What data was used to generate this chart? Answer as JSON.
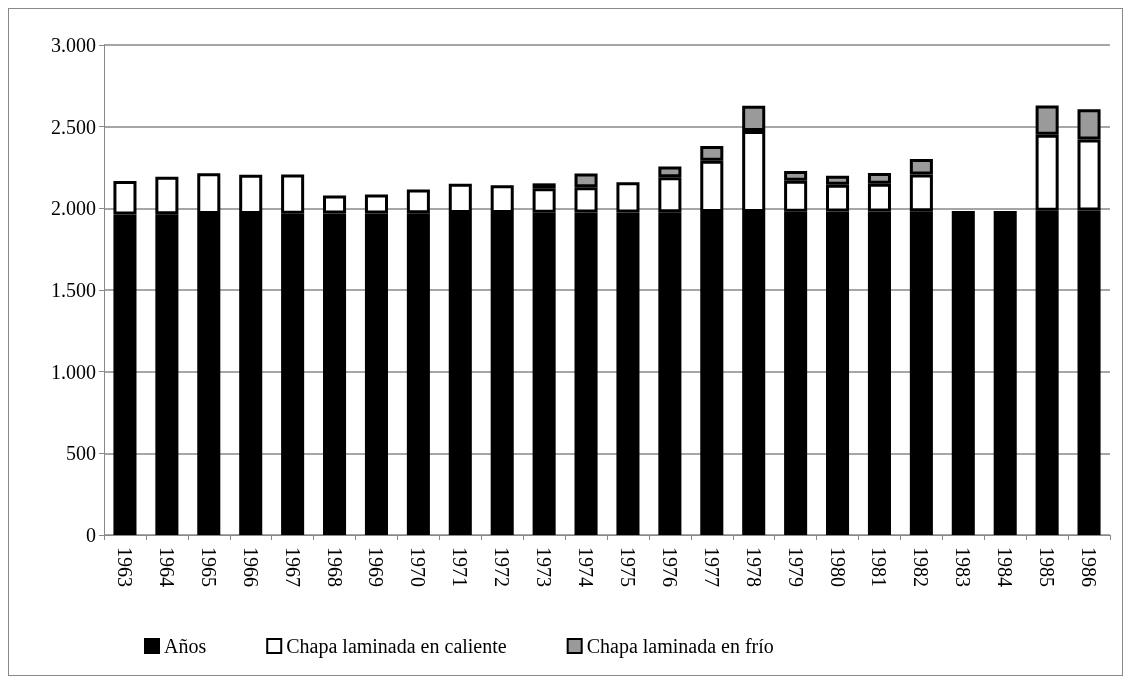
{
  "chart_data": {
    "type": "bar",
    "stacked": true,
    "categories": [
      "1963",
      "1964",
      "1965",
      "1966",
      "1967",
      "1968",
      "1969",
      "1970",
      "1971",
      "1972",
      "1973",
      "1974",
      "1975",
      "1976",
      "1977",
      "1978",
      "1979",
      "1980",
      "1981",
      "1982",
      "1983",
      "1984",
      "1985",
      "1986"
    ],
    "series": [
      {
        "name": "Años",
        "color": "#000000",
        "values": [
          1963,
          1964,
          1965,
          1966,
          1967,
          1968,
          1969,
          1970,
          1971,
          1972,
          1973,
          1974,
          1975,
          1976,
          1977,
          1978,
          1979,
          1980,
          1981,
          1982,
          1983,
          1984,
          1985,
          1986
        ]
      },
      {
        "name": "Chapa laminada en caliente",
        "color": "#ffffff",
        "values": [
          205,
          230,
          250,
          240,
          240,
          110,
          115,
          145,
          180,
          170,
          150,
          155,
          185,
          215,
          315,
          495,
          190,
          165,
          170,
          225,
          0,
          0,
          465,
          435
        ]
      },
      {
        "name": "Chapa laminada en frío",
        "color": "#9a9a9a",
        "values": [
          0,
          0,
          0,
          0,
          0,
          0,
          0,
          0,
          0,
          0,
          30,
          85,
          0,
          65,
          90,
          155,
          60,
          55,
          65,
          95,
          0,
          0,
          180,
          185
        ]
      }
    ],
    "ylim": [
      0,
      3000
    ],
    "yticks": [
      0,
      500,
      {
        "value": 1000,
        "label": "1.000"
      },
      {
        "value": 1500,
        "label": "1.500"
      },
      {
        "value": 2000,
        "label": "2.000"
      },
      {
        "value": 2500,
        "label": "2.500"
      },
      {
        "value": 3000,
        "label": "3.000"
      }
    ],
    "grid": "y",
    "legend": "bottom"
  }
}
